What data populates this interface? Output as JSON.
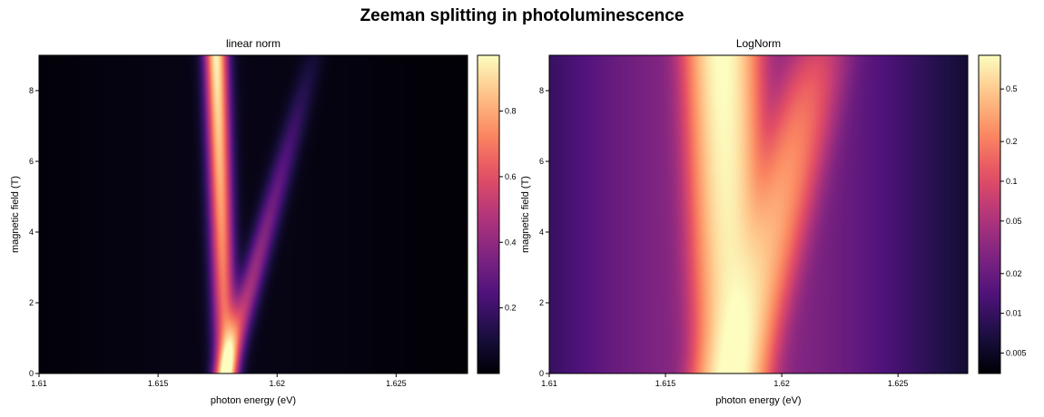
{
  "figure": {
    "title": "Zeeman splitting in photoluminescence"
  },
  "chart_data": [
    {
      "type": "heatmap",
      "title": "linear norm",
      "xlabel": "photon energy (eV)",
      "ylabel": "magnetic field (T)",
      "xlim": [
        1.61,
        1.628
      ],
      "ylim": [
        0,
        9
      ],
      "xticks": [
        1.61,
        1.615,
        1.62,
        1.625
      ],
      "xtick_labels": [
        "1.61",
        "1.615",
        "1.62",
        "1.625"
      ],
      "yticks": [
        0,
        2,
        4,
        6,
        8
      ],
      "ytick_labels": [
        "0",
        "2",
        "4",
        "6",
        "8"
      ],
      "colormap": "magma",
      "norm": "linear",
      "colorbar": {
        "scale": "linear",
        "range": [
          0.0,
          0.97
        ],
        "ticks": [
          0.2,
          0.4,
          0.6,
          0.8
        ],
        "tick_labels": [
          "0.2",
          "0.4",
          "0.6",
          "0.8"
        ]
      },
      "model": {
        "center_eV": 1.61785,
        "sigma_eV": 0.00035,
        "background_sigma_eV": 0.0045,
        "background_amplitude": 0.03,
        "upper_branch_slope_eV_per_T": 0.00041,
        "lower_branch_slope_eV_per_T": -4.5e-05,
        "upper_branch_amplitude_at_0T": 0.55,
        "upper_branch_amplitude_at_9T": 0.06,
        "lower_branch_amplitude_at_0T": 0.55,
        "lower_branch_amplitude_at_9T": 0.92
      }
    },
    {
      "type": "heatmap",
      "title": "LogNorm",
      "xlabel": "photon energy (eV)",
      "ylabel": "magnetic field (T)",
      "xlim": [
        1.61,
        1.628
      ],
      "ylim": [
        0,
        9
      ],
      "xticks": [
        1.61,
        1.615,
        1.62,
        1.625
      ],
      "xtick_labels": [
        "1.61",
        "1.615",
        "1.62",
        "1.625"
      ],
      "yticks": [
        0,
        2,
        4,
        6,
        8
      ],
      "ytick_labels": [
        "0",
        "2",
        "4",
        "6",
        "8"
      ],
      "colormap": "magma",
      "norm": "log",
      "colorbar": {
        "scale": "log",
        "range": [
          0.0035,
          0.9
        ],
        "ticks": [
          0.005,
          0.01,
          0.02,
          0.05,
          0.1,
          0.2,
          0.5
        ],
        "tick_labels": [
          "0.005",
          "0.01",
          "0.02",
          "0.05",
          "0.1",
          "0.2",
          "0.5"
        ]
      },
      "model": {
        "center_eV": 1.61785,
        "sigma_eV": 0.00075,
        "background_sigma_eV": 0.0045,
        "background_amplitude": 0.03,
        "upper_branch_slope_eV_per_T": 0.00041,
        "lower_branch_slope_eV_per_T": -4.5e-05,
        "upper_branch_amplitude_at_0T": 0.55,
        "upper_branch_amplitude_at_9T": 0.06,
        "lower_branch_amplitude_at_0T": 0.55,
        "lower_branch_amplitude_at_9T": 0.92
      }
    }
  ]
}
